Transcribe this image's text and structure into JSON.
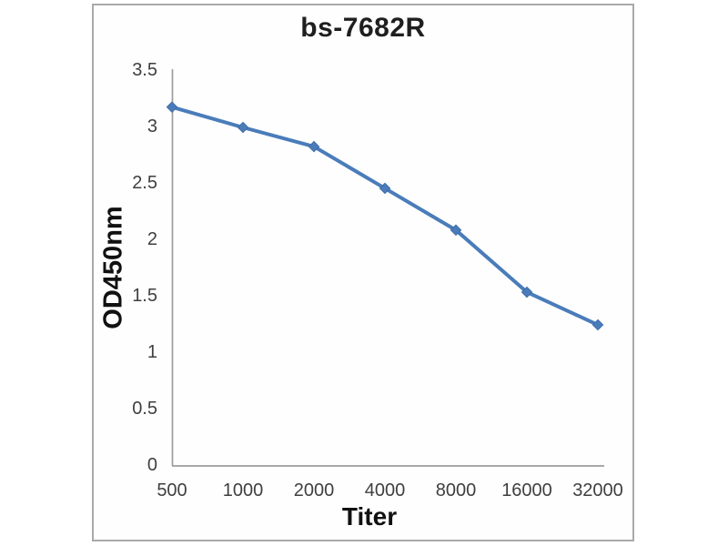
{
  "panel": {
    "background": "#fefefe",
    "border_color": "#a9a9a9"
  },
  "chart_data": {
    "type": "line",
    "title": "bs-7682R",
    "xlabel": "Titer",
    "ylabel": "OD450nm",
    "categories": [
      "500",
      "1000",
      "2000",
      "4000",
      "8000",
      "16000",
      "32000"
    ],
    "series": [
      {
        "name": "OD450nm",
        "values": [
          3.18,
          3.0,
          2.83,
          2.46,
          2.09,
          1.54,
          1.25
        ]
      }
    ],
    "ylim": [
      0,
      3.5
    ],
    "ytick_step": 0.5,
    "yticks": [
      "0",
      "0.5",
      "1",
      "1.5",
      "2",
      "2.5",
      "3",
      "3.5"
    ],
    "grid": false,
    "legend": false,
    "marker": "diamond",
    "series_color": "#4a7cba",
    "marker_edge_color": "#3e6da8",
    "axis_color": "#9d9d9d",
    "tick_label_color": "#3f3f3f",
    "title_color": "#1f1f1f"
  }
}
